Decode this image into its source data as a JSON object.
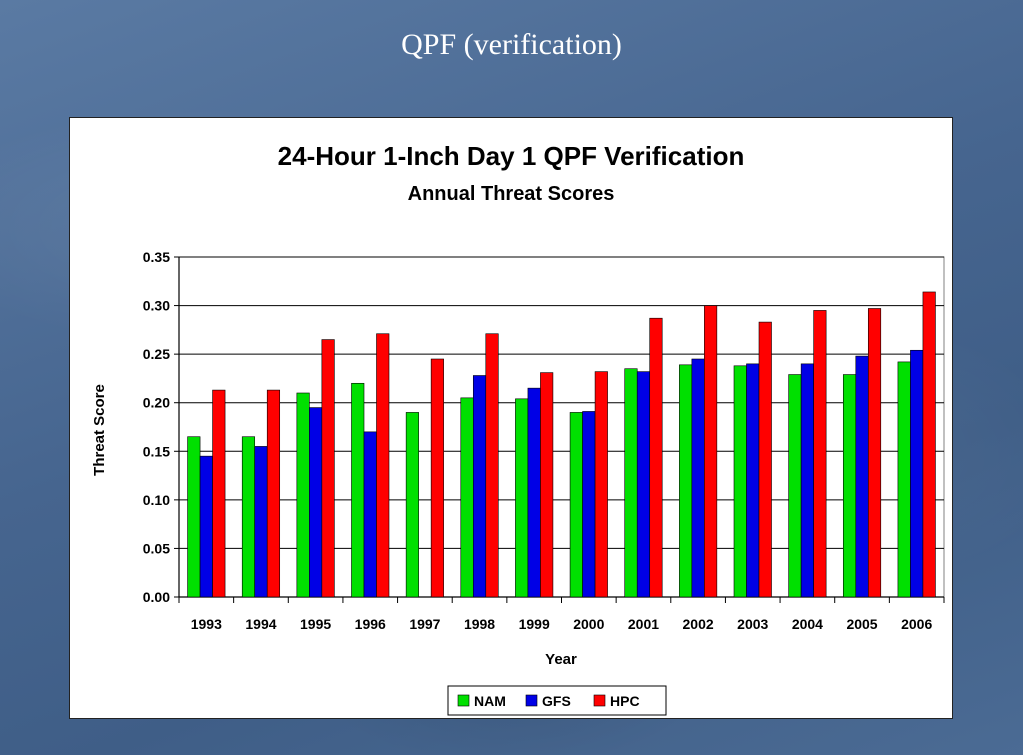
{
  "slide": {
    "title": "QPF (verification)"
  },
  "colors": {
    "NAM": "#00e000",
    "GFS": "#0000e6",
    "HPC": "#ff0000"
  },
  "chart_data": {
    "type": "bar",
    "title": "24-Hour 1-Inch Day 1 QPF Verification",
    "subtitle": "Annual Threat Scores",
    "xlabel": "Year",
    "ylabel": "Threat Score",
    "ylim": [
      0,
      0.35
    ],
    "yticks": [
      "0.00",
      "0.05",
      "0.10",
      "0.15",
      "0.20",
      "0.25",
      "0.30",
      "0.35"
    ],
    "grid": true,
    "legend_position": "bottom-center",
    "categories": [
      "1993",
      "1994",
      "1995",
      "1996",
      "1997",
      "1998",
      "1999",
      "2000",
      "2001",
      "2002",
      "2003",
      "2004",
      "2005",
      "2006"
    ],
    "series": [
      {
        "name": "NAM",
        "values": [
          0.165,
          0.165,
          0.21,
          0.22,
          0.19,
          0.205,
          0.204,
          0.19,
          0.235,
          0.239,
          0.238,
          0.229,
          0.229,
          0.242
        ]
      },
      {
        "name": "GFS",
        "values": [
          0.145,
          0.155,
          0.195,
          0.17,
          null,
          0.228,
          0.215,
          0.191,
          0.232,
          0.245,
          0.24,
          0.24,
          0.248,
          0.254
        ]
      },
      {
        "name": "HPC",
        "values": [
          0.213,
          0.213,
          0.265,
          0.271,
          0.245,
          0.271,
          0.231,
          0.232,
          0.287,
          0.3,
          0.283,
          0.295,
          0.297,
          0.314
        ]
      }
    ]
  }
}
